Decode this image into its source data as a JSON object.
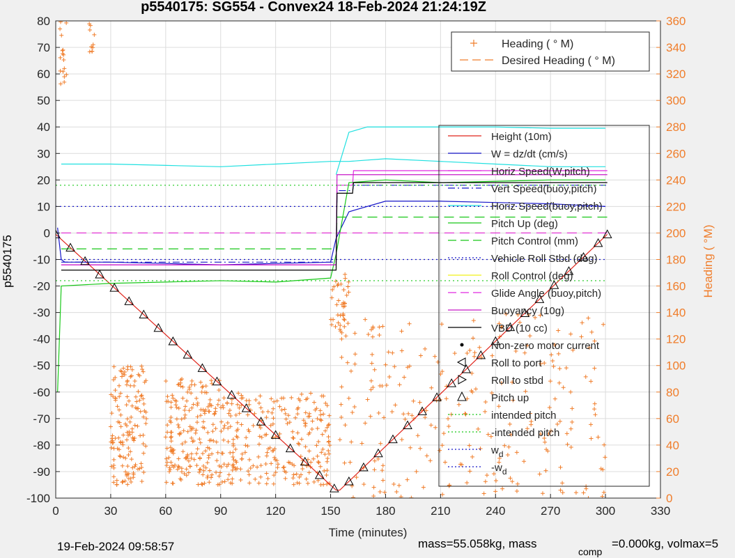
{
  "chart_data": {
    "type": "line",
    "title": "p5540175: SG554 - Convex24 18-Feb-2024 21:24:19Z",
    "xlabel": "Time (minutes)",
    "ylabel": "p5540175",
    "ylabel_right": "Heading (  °M)",
    "xlim": [
      0,
      330
    ],
    "ylim": [
      -100,
      80
    ],
    "ylim_right": [
      0,
      360
    ],
    "xticks": [
      0,
      30,
      60,
      90,
      120,
      150,
      180,
      210,
      240,
      270,
      300,
      330
    ],
    "yticks": [
      -100,
      -90,
      -80,
      -70,
      -60,
      -50,
      -40,
      -30,
      -20,
      -10,
      0,
      10,
      20,
      30,
      40,
      50,
      60,
      70,
      80
    ],
    "yticks_right": [
      0,
      20,
      40,
      60,
      80,
      100,
      120,
      140,
      160,
      180,
      200,
      220,
      240,
      260,
      280,
      300,
      320,
      340,
      360
    ],
    "grid": true,
    "colors": {
      "heading": "#f07d2a",
      "axis_right": "#f07d2a",
      "grid": "#dcdcdc"
    },
    "legend_top": {
      "placement": "top-right",
      "entries": [
        {
          "label": "Heading (  ° M)",
          "style": "plus",
          "color": "#f07d2a"
        },
        {
          "label": "Desired Heading (    ° M)",
          "style": "dash",
          "color": "#f07d2a"
        }
      ]
    },
    "legend_main": {
      "placement": "right",
      "entries": [
        {
          "label": "Height (10m)",
          "style": "solid",
          "color": "#e0241b"
        },
        {
          "label": "W = dz/dt (cm/s)",
          "style": "solid",
          "color": "#1515c8"
        },
        {
          "label": "Horiz Speed(W,pitch)",
          "style": "solid",
          "color": "#e028e0"
        },
        {
          "label": "Vert Speed(buoy,pitch)",
          "style": "dashdot",
          "color": "#1515c8"
        },
        {
          "label": "Horiz Speed(buoy,pitch)",
          "style": "solid",
          "color": "#1fe0e0"
        },
        {
          "label": "Pitch Up (deg)",
          "style": "solid",
          "color": "#18c818"
        },
        {
          "label": "Pitch Control (mm)",
          "style": "dash",
          "color": "#18c818"
        },
        {
          "label": "Vehicle Roll Stbd (deg)",
          "style": "dot",
          "color": "#1515c8"
        },
        {
          "label": "Roll Control (deg)",
          "style": "solid",
          "color": "#f0f018"
        },
        {
          "label": "Glide Angle (buoy,pitch)",
          "style": "dash",
          "color": "#e028e0"
        },
        {
          "label": "Buoyancy (10g)",
          "style": "solid",
          "color": "#c818c8"
        },
        {
          "label": "VBD (10 cc)",
          "style": "solid",
          "color": "#000000"
        },
        {
          "label": "Non-zero motor current",
          "style": "dot-marker",
          "color": "#000000"
        },
        {
          "label": "Roll to port",
          "style": "tri-left",
          "color": "#000000"
        },
        {
          "label": "Roll to stbd",
          "style": "tri-right",
          "color": "#000000"
        },
        {
          "label": "Pitch up",
          "style": "tri-up",
          "color": "#000000"
        },
        {
          "label": "intended pitch",
          "style": "dot",
          "color": "#18c818"
        },
        {
          "label": "-intended pitch",
          "style": "dot",
          "color": "#18c818"
        },
        {
          "label": "w",
          "sub": "d",
          "style": "dot",
          "color": "#1515c8"
        },
        {
          "label": "-w",
          "sub": "d",
          "style": "dot",
          "color": "#1515c8"
        }
      ]
    },
    "series": [
      {
        "name": "Height (10m)",
        "color": "#e0241b",
        "x": [
          0,
          153,
          155,
          301
        ],
        "y": [
          -0.5,
          -97,
          -97,
          -0.5
        ]
      },
      {
        "name": "W = dz/dt (cm/s)",
        "color": "#1515c8",
        "x": [
          1,
          3,
          5,
          30,
          60,
          90,
          120,
          150,
          153,
          160,
          180,
          210,
          240,
          270,
          300
        ],
        "y": [
          2,
          -10,
          -11,
          -11,
          -11.5,
          -12,
          -11.5,
          -11,
          -2,
          8,
          12,
          12,
          11.5,
          11,
          10
        ]
      },
      {
        "name": "Horiz Speed(W,pitch)",
        "color": "#e028e0",
        "x": [
          3,
          153,
          153.5,
          162,
          162.5,
          301
        ],
        "y": [
          -12,
          -12,
          18,
          18,
          23.5,
          23.5
        ]
      },
      {
        "name": "Vert Speed(buoy,pitch)",
        "color": "#1515c8",
        "x": [
          3,
          153,
          153.5,
          162,
          162.5,
          301
        ],
        "y": [
          -11,
          -11,
          16,
          16,
          18,
          18
        ]
      },
      {
        "name": "Horiz Speed(buoy,pitch)",
        "color": "#1fe0e0",
        "x": [
          3,
          30,
          60,
          90,
          120,
          150,
          152,
          160,
          180,
          210,
          240,
          270,
          300
        ],
        "y": [
          26,
          26,
          25.5,
          25,
          26,
          27,
          27,
          27,
          28,
          27,
          26,
          25,
          25
        ]
      },
      {
        "name": "Horiz Speed(buoy,pitch) upper",
        "color": "#1fe0e0",
        "x": [
          153,
          160,
          170,
          200,
          240,
          270,
          300
        ],
        "y": [
          22,
          38,
          40,
          40,
          40,
          39.5,
          39.5
        ]
      },
      {
        "name": "Pitch Up (deg)",
        "color": "#18c818",
        "x": [
          1,
          3,
          30,
          60,
          90,
          120,
          150,
          153,
          160,
          180,
          210,
          240,
          270,
          300
        ],
        "y": [
          -60,
          -20,
          -19,
          -18.5,
          -18,
          -18.5,
          -17,
          -8,
          19,
          20,
          19,
          19.5,
          20,
          20
        ]
      },
      {
        "name": "Pitch Control (mm)",
        "color": "#18c818",
        "x": [
          3,
          153,
          153.5,
          301
        ],
        "y": [
          -6,
          -6,
          6,
          6
        ]
      },
      {
        "name": "Vehicle Roll Stbd (deg)",
        "color": "#1515c8",
        "x": [
          0,
          301
        ],
        "y": [
          10,
          10
        ]
      },
      {
        "name": "Vehicle Roll Stbd (deg) lower",
        "color": "#1515c8",
        "x": [
          0,
          301
        ],
        "y": [
          -10,
          -10
        ]
      },
      {
        "name": "Glide Angle (buoy,pitch)",
        "color": "#e028e0",
        "x": [
          3,
          301
        ],
        "y": [
          0,
          0
        ]
      },
      {
        "name": "Buoyancy (10g)",
        "color": "#c818c8",
        "x": [
          3,
          153,
          153.5,
          301
        ],
        "y": [
          -12,
          -12,
          22,
          22
        ]
      },
      {
        "name": "VBD (10 cc)",
        "color": "#000000",
        "x": [
          3,
          153,
          153.5,
          162,
          162.5,
          301
        ],
        "y": [
          -14,
          -14,
          15,
          15,
          19,
          19
        ]
      },
      {
        "name": "intended pitch",
        "color": "#18c818",
        "x": [
          0,
          301
        ],
        "y": [
          18,
          18
        ]
      },
      {
        "name": "-intended pitch",
        "color": "#18c818",
        "x": [
          0,
          301
        ],
        "y": [
          -18,
          -18
        ]
      }
    ],
    "markers": {
      "pitch_up_x": [
        0,
        8,
        16,
        24,
        32,
        40,
        48,
        56,
        64,
        72,
        80,
        88,
        96,
        104,
        112,
        120,
        128,
        136,
        144,
        152,
        160,
        168,
        176,
        184,
        192,
        200,
        208,
        216,
        224,
        232,
        240,
        248,
        256,
        264,
        272,
        280,
        288,
        296,
        301
      ]
    },
    "heading": {
      "clusters_dive": [
        {
          "x": [
            2,
            6
          ],
          "y": [
            310,
            360
          ]
        },
        {
          "x": [
            18,
            22
          ],
          "y": [
            330,
            360
          ]
        },
        {
          "x": [
            30,
            50
          ],
          "y": [
            10,
            100
          ]
        },
        {
          "x": [
            60,
            90
          ],
          "y": [
            10,
            90
          ]
        },
        {
          "x": [
            90,
            150
          ],
          "y": [
            10,
            80
          ]
        }
      ],
      "clusters_climb": [
        {
          "x": [
            155,
            300
          ],
          "y": [
            0,
            140
          ]
        },
        {
          "x": [
            150,
            160
          ],
          "y": [
            120,
            170
          ]
        }
      ]
    },
    "desired_heading": {
      "x": [
        3,
        301
      ],
      "y": [
        200,
        200
      ]
    }
  },
  "footer": {
    "timestamp": "19-Feb-2024 09:58:57",
    "mass_text": "mass=55.058kg, mass",
    "comp_sub": "comp",
    "volmax_text": "=0.000kg, volmax=5"
  }
}
